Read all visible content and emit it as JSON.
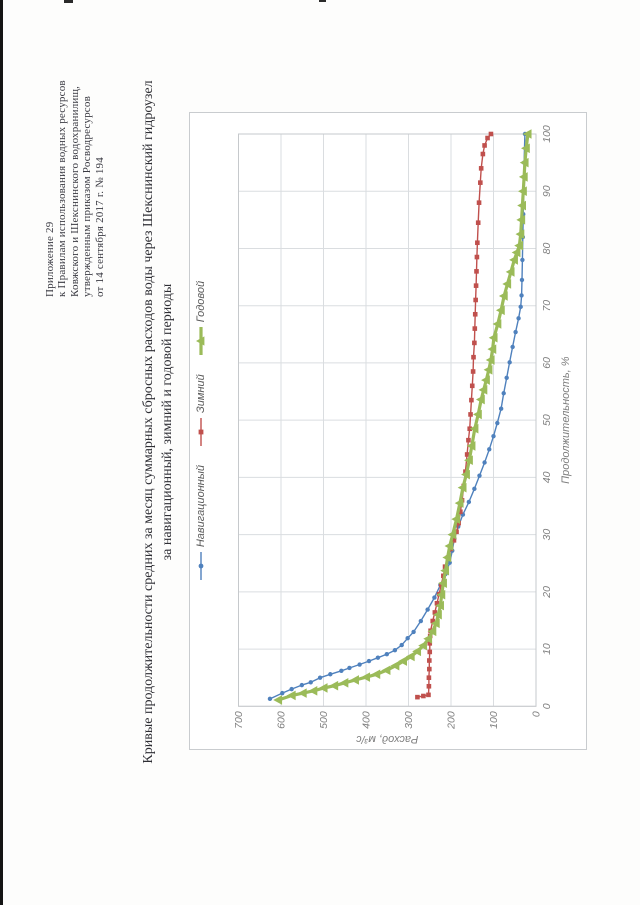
{
  "page": {
    "header_lines": [
      "Приложение 29",
      "к Правилам использования водных ресурсов",
      "Ковжского и Шекснинского водохранилищ,",
      "утвержденным приказом Росводресурсов",
      "от 14 сентября 2017 г. № 194"
    ],
    "title_lines": [
      "Кривые продолжительности средних за месяц суммарных сбросных расходов воды через Шекснинский гидроузел",
      "за навигационный, зимний и годовой периоды"
    ]
  },
  "chart_data": {
    "type": "line",
    "title": "",
    "xlabel": "Продолжительность, %",
    "ylabel": "Расход, м³/с",
    "xlim": [
      0,
      100
    ],
    "ylim": [
      0,
      700
    ],
    "x_ticks": [
      0,
      10,
      20,
      30,
      40,
      50,
      60,
      70,
      80,
      90,
      100
    ],
    "y_ticks": [
      700,
      600,
      500,
      400,
      300,
      200,
      100,
      0
    ],
    "grid": true,
    "legend_position": "top",
    "colors": {
      "grid": "#dadde0",
      "plot_border": "#c6c9cc",
      "axis_text": "#7f7f7f",
      "legend_text": "#595959"
    },
    "series": [
      {
        "name": "Навигационный",
        "color": "#4F81BD",
        "marker": "circle",
        "line_width": 1.4,
        "points": [
          [
            1.3,
            626
          ],
          [
            2.3,
            597
          ],
          [
            3,
            575
          ],
          [
            3.7,
            551
          ],
          [
            4.2,
            530
          ],
          [
            5,
            508
          ],
          [
            5.6,
            484
          ],
          [
            6.2,
            458
          ],
          [
            6.7,
            439
          ],
          [
            7.3,
            415
          ],
          [
            7.9,
            393
          ],
          [
            8.5,
            372
          ],
          [
            9.1,
            351
          ],
          [
            9.8,
            332
          ],
          [
            10.7,
            316
          ],
          [
            11.9,
            302
          ],
          [
            13,
            288
          ],
          [
            14.9,
            271
          ],
          [
            16.9,
            255
          ],
          [
            19,
            239
          ],
          [
            21.2,
            225
          ],
          [
            23.1,
            213
          ],
          [
            25.1,
            203
          ],
          [
            27.2,
            197
          ],
          [
            29.3,
            192
          ],
          [
            31.4,
            183
          ],
          [
            33.5,
            172
          ],
          [
            35.7,
            158
          ],
          [
            38,
            145
          ],
          [
            40.3,
            133
          ],
          [
            42.6,
            121
          ],
          [
            44.9,
            110
          ],
          [
            47.2,
            100
          ],
          [
            49.5,
            91
          ],
          [
            52,
            82
          ],
          [
            54.7,
            76
          ],
          [
            57.4,
            69
          ],
          [
            60.1,
            62
          ],
          [
            62.8,
            55
          ],
          [
            65.4,
            48
          ],
          [
            67.8,
            41
          ],
          [
            69.8,
            36
          ],
          [
            71.8,
            34
          ],
          [
            74.5,
            33
          ],
          [
            78,
            32
          ],
          [
            82,
            31
          ],
          [
            86,
            30
          ],
          [
            90,
            29
          ],
          [
            95,
            28
          ],
          [
            100,
            26
          ]
        ]
      },
      {
        "name": "Зимний",
        "color": "#C0504D",
        "marker": "square",
        "line_width": 1.4,
        "points": [
          [
            1.6,
            279
          ],
          [
            1.8,
            265
          ],
          [
            2,
            253
          ],
          [
            3.5,
            252
          ],
          [
            5,
            252
          ],
          [
            6.5,
            251
          ],
          [
            8,
            251
          ],
          [
            9.5,
            250
          ],
          [
            11,
            250
          ],
          [
            12.3,
            249
          ],
          [
            13.2,
            248
          ],
          [
            14.9,
            243
          ],
          [
            16.4,
            238
          ],
          [
            18,
            233
          ],
          [
            19.6,
            228
          ],
          [
            21.2,
            223
          ],
          [
            22.8,
            218
          ],
          [
            24.4,
            214
          ],
          [
            26,
            207
          ],
          [
            27.5,
            200
          ],
          [
            29,
            193
          ],
          [
            30.5,
            187
          ],
          [
            32,
            182
          ],
          [
            34,
            178
          ],
          [
            36,
            174
          ],
          [
            38.5,
            170
          ],
          [
            41,
            166
          ],
          [
            44,
            162
          ],
          [
            46.5,
            159
          ],
          [
            48.5,
            156
          ],
          [
            51,
            154
          ],
          [
            53.5,
            152
          ],
          [
            56,
            150
          ],
          [
            58.5,
            148
          ],
          [
            61,
            147
          ],
          [
            63.5,
            145
          ],
          [
            66,
            144
          ],
          [
            68.5,
            143
          ],
          [
            71,
            142
          ],
          [
            73.5,
            141
          ],
          [
            76,
            140
          ],
          [
            78.5,
            139
          ],
          [
            81,
            138
          ],
          [
            84.5,
            136
          ],
          [
            88,
            134
          ],
          [
            91.5,
            131
          ],
          [
            94,
            129
          ],
          [
            96.5,
            125
          ],
          [
            98,
            121
          ],
          [
            99.3,
            114
          ],
          [
            100,
            106
          ]
        ]
      },
      {
        "name": "Годовой",
        "color": "#9BBB59",
        "marker": "triangle",
        "line_width": 3.2,
        "points": [
          [
            1.1,
            606
          ],
          [
            1.9,
            574
          ],
          [
            2.3,
            548
          ],
          [
            2.7,
            523
          ],
          [
            3.2,
            499
          ],
          [
            3.6,
            474
          ],
          [
            4.1,
            450
          ],
          [
            4.6,
            425
          ],
          [
            5.1,
            399
          ],
          [
            5.6,
            375
          ],
          [
            6.3,
            351
          ],
          [
            7.1,
            330
          ],
          [
            7.9,
            312
          ],
          [
            8.7,
            294
          ],
          [
            9.6,
            279
          ],
          [
            10.6,
            265
          ],
          [
            11.8,
            253
          ],
          [
            13.1,
            243
          ],
          [
            14.5,
            235
          ],
          [
            16,
            230
          ],
          [
            17.6,
            225
          ],
          [
            19.5,
            222
          ],
          [
            21.5,
            218
          ],
          [
            23.7,
            213
          ],
          [
            26,
            208
          ],
          [
            28,
            203
          ],
          [
            30,
            196
          ],
          [
            32.7,
            187
          ],
          [
            35.5,
            179
          ],
          [
            38.2,
            172
          ],
          [
            40.5,
            164
          ],
          [
            43,
            157
          ],
          [
            45.5,
            151
          ],
          [
            48.5,
            144
          ],
          [
            51,
            136
          ],
          [
            53.6,
            129
          ],
          [
            55.3,
            123
          ],
          [
            57,
            117
          ],
          [
            58.8,
            111
          ],
          [
            60.5,
            106
          ],
          [
            62.4,
            102
          ],
          [
            64.4,
            99
          ],
          [
            66.8,
            90
          ],
          [
            69.2,
            82
          ],
          [
            71.7,
            75
          ],
          [
            73.8,
            67
          ],
          [
            75.9,
            59
          ],
          [
            78,
            51
          ],
          [
            79.3,
            45
          ],
          [
            80.5,
            39
          ],
          [
            82.5,
            36
          ],
          [
            85,
            34
          ],
          [
            87.5,
            32
          ],
          [
            90,
            30
          ],
          [
            92.5,
            28
          ],
          [
            95,
            26
          ],
          [
            97.5,
            23
          ],
          [
            100,
            19
          ]
        ]
      }
    ]
  }
}
